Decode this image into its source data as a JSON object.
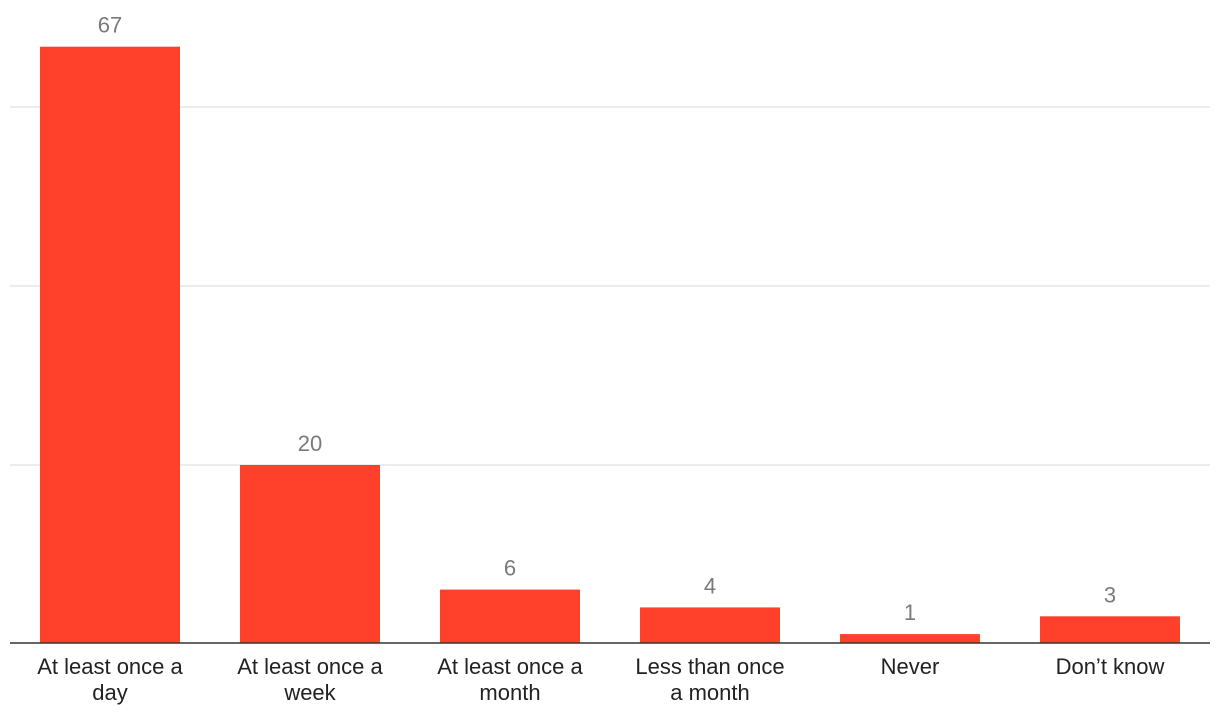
{
  "chart_data": {
    "type": "bar",
    "categories": [
      [
        "At least once a",
        "day"
      ],
      [
        "At least once a",
        "week"
      ],
      [
        "At least once a",
        "month"
      ],
      [
        "Less than once",
        "a month"
      ],
      [
        "Never"
      ],
      [
        "Don’t know"
      ]
    ],
    "values": [
      67,
      20,
      6,
      4,
      1,
      3
    ],
    "data_labels": [
      "67",
      "20",
      "6",
      "4",
      "1",
      "3"
    ],
    "ylim": [
      0,
      75
    ],
    "gridlines": [
      25,
      50,
      75
    ],
    "grid": true,
    "bar_color": "#ff412c",
    "baseline_color": "#333333",
    "gridline_color": "#e6e6e6"
  }
}
